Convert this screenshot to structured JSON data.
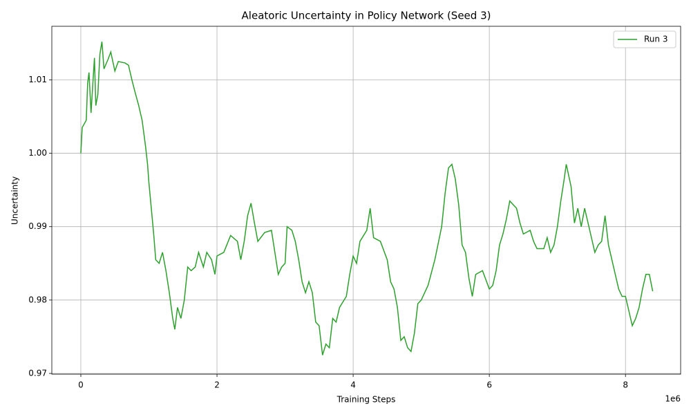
{
  "chart_data": {
    "type": "line",
    "title": "Aleatoric Uncertainty in Policy Network (Seed 3)",
    "x_label": "Training Steps",
    "y_label": "Uncertainty",
    "x_offset_label": "1e6",
    "x": [
      0,
      20000,
      80000,
      100000,
      120000,
      150000,
      200000,
      220000,
      250000,
      280000,
      310000,
      340000,
      400000,
      440000,
      500000,
      550000,
      650000,
      700000,
      750000,
      800000,
      850000,
      900000,
      950000,
      980000,
      1000000,
      1030000,
      1070000,
      1100000,
      1150000,
      1200000,
      1250000,
      1300000,
      1350000,
      1380000,
      1420000,
      1470000,
      1520000,
      1570000,
      1620000,
      1680000,
      1730000,
      1800000,
      1850000,
      1920000,
      1970000,
      2000000,
      2100000,
      2200000,
      2300000,
      2350000,
      2400000,
      2450000,
      2500000,
      2550000,
      2600000,
      2700000,
      2800000,
      2850000,
      2900000,
      2950000,
      3000000,
      3030000,
      3100000,
      3150000,
      3200000,
      3250000,
      3300000,
      3350000,
      3400000,
      3450000,
      3500000,
      3550000,
      3600000,
      3650000,
      3700000,
      3750000,
      3800000,
      3900000,
      3950000,
      4000000,
      4050000,
      4100000,
      4200000,
      4250000,
      4300000,
      4400000,
      4500000,
      4550000,
      4600000,
      4650000,
      4700000,
      4750000,
      4800000,
      4850000,
      4900000,
      4950000,
      5000000,
      5050000,
      5100000,
      5200000,
      5300000,
      5350000,
      5400000,
      5450000,
      5500000,
      5550000,
      5600000,
      5650000,
      5700000,
      5750000,
      5800000,
      5900000,
      6000000,
      6050000,
      6100000,
      6150000,
      6200000,
      6250000,
      6300000,
      6400000,
      6450000,
      6500000,
      6600000,
      6650000,
      6700000,
      6800000,
      6850000,
      6900000,
      6950000,
      7000000,
      7050000,
      7100000,
      7130000,
      7200000,
      7250000,
      7300000,
      7350000,
      7400000,
      7500000,
      7550000,
      7600000,
      7650000,
      7700000,
      7750000,
      7800000,
      7850000,
      7900000,
      7950000,
      8000000,
      8050000,
      8100000,
      8150000,
      8200000,
      8250000,
      8300000,
      8350000,
      8400000
    ],
    "series": [
      {
        "name": "Run 3",
        "color": "#2ca02c",
        "values": [
          1.0,
          1.0035,
          1.0045,
          1.0095,
          1.011,
          1.0055,
          1.013,
          1.0065,
          1.008,
          1.0135,
          1.0152,
          1.0115,
          1.0128,
          1.0138,
          1.0112,
          1.0125,
          1.0123,
          1.012,
          1.01,
          1.0082,
          1.0065,
          1.0045,
          1.001,
          0.9985,
          0.996,
          0.993,
          0.989,
          0.9855,
          0.985,
          0.9865,
          0.984,
          0.981,
          0.9775,
          0.976,
          0.979,
          0.9775,
          0.98,
          0.9845,
          0.984,
          0.9845,
          0.9865,
          0.9845,
          0.9865,
          0.9855,
          0.9835,
          0.986,
          0.9865,
          0.9888,
          0.988,
          0.9855,
          0.988,
          0.9915,
          0.9932,
          0.9905,
          0.988,
          0.9892,
          0.9895,
          0.9865,
          0.9835,
          0.9845,
          0.985,
          0.99,
          0.9895,
          0.988,
          0.9855,
          0.9825,
          0.981,
          0.9825,
          0.981,
          0.977,
          0.9765,
          0.9725,
          0.974,
          0.9735,
          0.9775,
          0.977,
          0.979,
          0.9805,
          0.9835,
          0.986,
          0.985,
          0.988,
          0.9895,
          0.9925,
          0.9885,
          0.988,
          0.9855,
          0.9825,
          0.9815,
          0.979,
          0.9745,
          0.975,
          0.9735,
          0.973,
          0.9755,
          0.9795,
          0.98,
          0.981,
          0.982,
          0.9855,
          0.99,
          0.9945,
          0.998,
          0.9985,
          0.9965,
          0.993,
          0.9875,
          0.9865,
          0.983,
          0.9805,
          0.9835,
          0.984,
          0.9815,
          0.982,
          0.984,
          0.9875,
          0.989,
          0.991,
          0.9935,
          0.9925,
          0.9905,
          0.989,
          0.9895,
          0.988,
          0.987,
          0.987,
          0.9885,
          0.9865,
          0.9875,
          0.99,
          0.9935,
          0.9965,
          0.9985,
          0.9955,
          0.9905,
          0.9925,
          0.99,
          0.9925,
          0.9885,
          0.9865,
          0.9875,
          0.988,
          0.9915,
          0.9875,
          0.9855,
          0.9835,
          0.9815,
          0.9805,
          0.9805,
          0.9785,
          0.9765,
          0.9775,
          0.979,
          0.9815,
          0.9835,
          0.9835,
          0.9812
        ]
      }
    ],
    "xlim": [
      -426000,
      8810000
    ],
    "xticks": [
      {
        "value": 0,
        "label": "0"
      },
      {
        "value": 2000000,
        "label": "2"
      },
      {
        "value": 4000000,
        "label": "4"
      },
      {
        "value": 6000000,
        "label": "6"
      },
      {
        "value": 8000000,
        "label": "8"
      }
    ],
    "ylim": [
      0.9699,
      1.0173
    ],
    "yticks": [
      0.97,
      0.98,
      0.99,
      {
        "value": 1,
        "label": "1.00"
      },
      1.01
    ],
    "grid": true,
    "legend": "upper right"
  }
}
